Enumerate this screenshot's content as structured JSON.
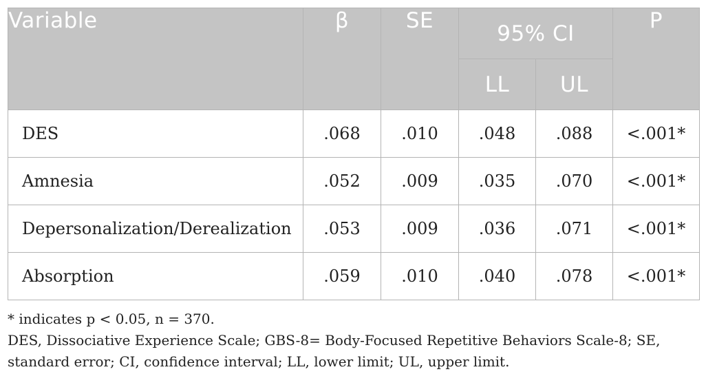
{
  "table": {
    "headers": {
      "variable": "Variable",
      "beta": "β",
      "se": "SE",
      "ci": "95% CI",
      "ll": "LL",
      "ul": "UL",
      "p": "P"
    },
    "rows": [
      {
        "variable": "DES",
        "beta": ".068",
        "se": ".010",
        "ll": ".048",
        "ul": ".088",
        "p": "<.001*"
      },
      {
        "variable": "Amnesia",
        "beta": ".052",
        "se": ".009",
        "ll": ".035",
        "ul": ".070",
        "p": "<.001*"
      },
      {
        "variable": "Depersonalization/Derealization",
        "beta": ".053",
        "se": ".009",
        "ll": ".036",
        "ul": ".071",
        "p": "<.001*"
      },
      {
        "variable": "Absorption",
        "beta": ".059",
        "se": ".010",
        "ll": ".040",
        "ul": ".078",
        "p": "<.001*"
      }
    ]
  },
  "notes": {
    "line1": "* indicates p < 0.05, n = 370.",
    "line2": "DES, Dissociative Experience Scale; GBS-8= Body-Focused Repetitive Behaviors Scale-8; SE, standard error; CI, confidence interval; LL, lower limit; UL, upper limit."
  }
}
